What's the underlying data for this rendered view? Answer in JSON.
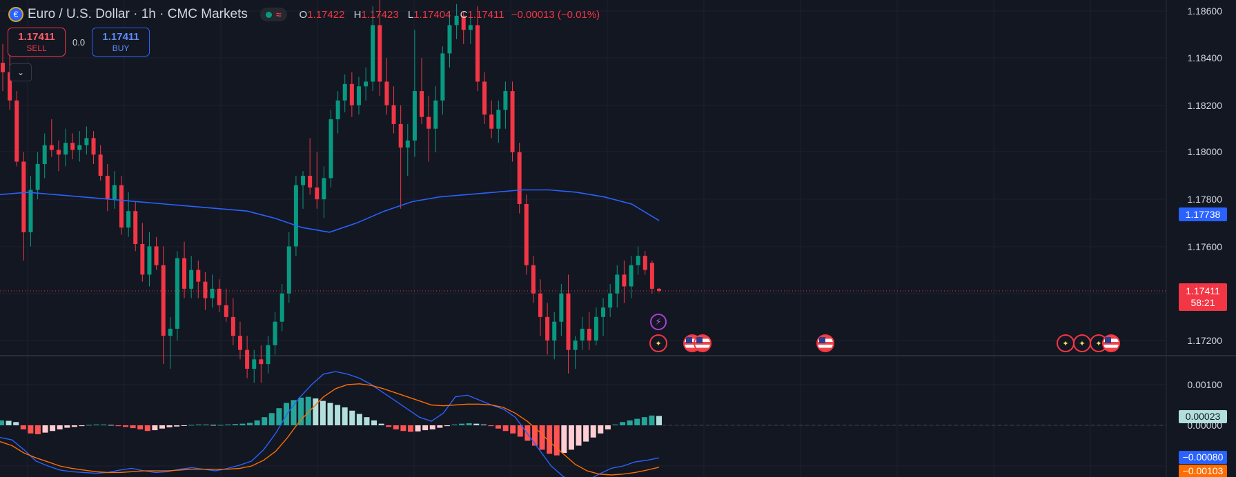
{
  "header": {
    "title": "Euro / U.S. Dollar · 1h · CMC Markets",
    "ohlc": {
      "o_label": "O",
      "o": "1.17422",
      "h_label": "H",
      "h": "1.17423",
      "l_label": "L",
      "l": "1.17404",
      "c_label": "C",
      "c": "1.17411",
      "change": "−0.00013 (−0.01%)"
    }
  },
  "trade": {
    "sell_price": "1.17411",
    "sell_label": "SELL",
    "spread": "0.0",
    "buy_price": "1.17411",
    "buy_label": "BUY"
  },
  "price_axis": {
    "labels": [
      "1.18600",
      "1.18400",
      "1.18200",
      "1.18000",
      "1.17800",
      "1.17600",
      "1.17200"
    ],
    "ma_badge": "1.17738",
    "last_badge_price": "1.17411",
    "last_badge_timer": "58:21"
  },
  "macd_axis": {
    "labels": [
      "0.00100",
      "0.00000"
    ],
    "hist_badge": "0.00023",
    "macd_badge": "−0.00080",
    "signal_badge": "−0.00103"
  },
  "colors": {
    "background": "#131722",
    "up": "#089981",
    "down": "#f23645",
    "ma": "#2962ff",
    "macd_line": "#2962ff",
    "signal_line": "#ff6d00",
    "hist_up_strong": "#26a69a",
    "hist_up_weak": "#b2dfdb",
    "hist_down_strong": "#ff5252",
    "hist_down_weak": "#ffcdd2"
  },
  "events": [
    {
      "type": "flash",
      "icon": "lightning-icon"
    },
    {
      "type": "eu",
      "icon": "eu-flag-icon"
    },
    {
      "type": "us",
      "icon": "us-flag-icon"
    },
    {
      "type": "us",
      "icon": "us-flag-icon"
    },
    {
      "type": "us",
      "icon": "us-flag-icon"
    },
    {
      "type": "eu",
      "icon": "eu-flag-icon"
    },
    {
      "type": "eu",
      "icon": "eu-flag-icon"
    },
    {
      "type": "eu",
      "icon": "eu-flag-icon"
    },
    {
      "type": "us",
      "icon": "us-flag-icon"
    }
  ],
  "chart_data": {
    "type": "candlestick",
    "price_ylim": [
      1.1716,
      1.1868
    ],
    "candles": [
      [
        1.1838,
        1.1846,
        1.1826,
        1.1834
      ],
      [
        1.1834,
        1.1842,
        1.1818,
        1.1822
      ],
      [
        1.1822,
        1.1826,
        1.1794,
        1.1796
      ],
      [
        1.1796,
        1.18,
        1.1754,
        1.1766
      ],
      [
        1.1766,
        1.179,
        1.176,
        1.1784
      ],
      [
        1.1784,
        1.18,
        1.178,
        1.1795
      ],
      [
        1.1795,
        1.1808,
        1.1789,
        1.1803
      ],
      [
        1.1803,
        1.1814,
        1.1798,
        1.1801
      ],
      [
        1.1801,
        1.1805,
        1.1792,
        1.1799
      ],
      [
        1.1799,
        1.181,
        1.1794,
        1.1804
      ],
      [
        1.1804,
        1.1808,
        1.1797,
        1.1801
      ],
      [
        1.1801,
        1.1809,
        1.1796,
        1.1803
      ],
      [
        1.1803,
        1.1811,
        1.1799,
        1.1806
      ],
      [
        1.1806,
        1.1809,
        1.1795,
        1.1799
      ],
      [
        1.1799,
        1.1803,
        1.1788,
        1.179
      ],
      [
        1.179,
        1.1795,
        1.1775,
        1.178
      ],
      [
        1.178,
        1.1792,
        1.1776,
        1.1786
      ],
      [
        1.1786,
        1.179,
        1.1765,
        1.1768
      ],
      [
        1.1768,
        1.1783,
        1.1764,
        1.1775
      ],
      [
        1.1775,
        1.1779,
        1.1758,
        1.1761
      ],
      [
        1.1761,
        1.177,
        1.1745,
        1.1748
      ],
      [
        1.1748,
        1.1766,
        1.1743,
        1.176
      ],
      [
        1.176,
        1.1764,
        1.175,
        1.1752
      ],
      [
        1.1752,
        1.176,
        1.171,
        1.1722
      ],
      [
        1.1722,
        1.173,
        1.1708,
        1.1725
      ],
      [
        1.1725,
        1.1758,
        1.172,
        1.1755
      ],
      [
        1.1755,
        1.1762,
        1.1738,
        1.1742
      ],
      [
        1.1742,
        1.1756,
        1.1738,
        1.175
      ],
      [
        1.175,
        1.1754,
        1.1738,
        1.1745
      ],
      [
        1.1745,
        1.1749,
        1.1733,
        1.1738
      ],
      [
        1.1738,
        1.1748,
        1.1734,
        1.1742
      ],
      [
        1.1742,
        1.1746,
        1.1732,
        1.1735
      ],
      [
        1.1735,
        1.1742,
        1.1728,
        1.173
      ],
      [
        1.173,
        1.1738,
        1.1718,
        1.1722
      ],
      [
        1.1722,
        1.1728,
        1.1712,
        1.1716
      ],
      [
        1.1716,
        1.1722,
        1.1704,
        1.1708
      ],
      [
        1.1708,
        1.1716,
        1.1702,
        1.1712
      ],
      [
        1.1712,
        1.1718,
        1.1702,
        1.171
      ],
      [
        1.171,
        1.1722,
        1.1706,
        1.1718
      ],
      [
        1.1718,
        1.1732,
        1.1714,
        1.1728
      ],
      [
        1.1728,
        1.1744,
        1.1724,
        1.174
      ],
      [
        1.174,
        1.1766,
        1.1736,
        1.176
      ],
      [
        1.176,
        1.179,
        1.1756,
        1.1786
      ],
      [
        1.1786,
        1.1792,
        1.1776,
        1.179
      ],
      [
        1.179,
        1.1806,
        1.1782,
        1.1785
      ],
      [
        1.1785,
        1.18,
        1.1776,
        1.178
      ],
      [
        1.178,
        1.1794,
        1.1772,
        1.1789
      ],
      [
        1.1789,
        1.1818,
        1.1785,
        1.1814
      ],
      [
        1.1814,
        1.1826,
        1.1808,
        1.1822
      ],
      [
        1.1822,
        1.1833,
        1.1817,
        1.1829
      ],
      [
        1.1829,
        1.1834,
        1.1815,
        1.182
      ],
      [
        1.182,
        1.1832,
        1.1816,
        1.1828
      ],
      [
        1.1828,
        1.1836,
        1.1822,
        1.183
      ],
      [
        1.183,
        1.1862,
        1.1826,
        1.1854
      ],
      [
        1.1854,
        1.1866,
        1.1824,
        1.183
      ],
      [
        1.183,
        1.184,
        1.1816,
        1.182
      ],
      [
        1.182,
        1.1828,
        1.1808,
        1.1812
      ],
      [
        1.1812,
        1.182,
        1.1776,
        1.1802
      ],
      [
        1.1802,
        1.1812,
        1.179,
        1.1805
      ],
      [
        1.1805,
        1.1852,
        1.1798,
        1.1826
      ],
      [
        1.1826,
        1.184,
        1.1812,
        1.1815
      ],
      [
        1.1815,
        1.1824,
        1.1796,
        1.181
      ],
      [
        1.181,
        1.1828,
        1.18,
        1.1822
      ],
      [
        1.1822,
        1.1845,
        1.1816,
        1.1842
      ],
      [
        1.1842,
        1.186,
        1.1836,
        1.1854
      ],
      [
        1.1854,
        1.1863,
        1.1848,
        1.1858
      ],
      [
        1.1858,
        1.186,
        1.1846,
        1.1852
      ],
      [
        1.1852,
        1.186,
        1.1846,
        1.1854
      ],
      [
        1.1854,
        1.1862,
        1.1826,
        1.183
      ],
      [
        1.183,
        1.1834,
        1.1812,
        1.1816
      ],
      [
        1.1816,
        1.1822,
        1.1806,
        1.181
      ],
      [
        1.181,
        1.1822,
        1.1804,
        1.1818
      ],
      [
        1.1818,
        1.183,
        1.181,
        1.1826
      ],
      [
        1.1826,
        1.183,
        1.1796,
        1.18
      ],
      [
        1.18,
        1.1804,
        1.1774,
        1.1778
      ],
      [
        1.1778,
        1.1782,
        1.1748,
        1.1752
      ],
      [
        1.1752,
        1.1756,
        1.1736,
        1.174
      ],
      [
        1.174,
        1.1746,
        1.1722,
        1.173
      ],
      [
        1.173,
        1.1736,
        1.1714,
        1.172
      ],
      [
        1.172,
        1.1732,
        1.1712,
        1.1728
      ],
      [
        1.1728,
        1.1744,
        1.1722,
        1.174
      ],
      [
        1.174,
        1.1748,
        1.1706,
        1.1716
      ],
      [
        1.1716,
        1.1722,
        1.1708,
        1.172
      ],
      [
        1.172,
        1.173,
        1.1716,
        1.1725
      ],
      [
        1.1725,
        1.1732,
        1.1716,
        1.172
      ],
      [
        1.172,
        1.1734,
        1.1718,
        1.173
      ],
      [
        1.173,
        1.1738,
        1.1722,
        1.1734
      ],
      [
        1.1734,
        1.1744,
        1.173,
        1.174
      ],
      [
        1.174,
        1.1752,
        1.1734,
        1.1748
      ],
      [
        1.1748,
        1.1754,
        1.1736,
        1.1743
      ],
      [
        1.1743,
        1.1756,
        1.1738,
        1.1752
      ],
      [
        1.1752,
        1.176,
        1.1748,
        1.1756
      ],
      [
        1.1756,
        1.1758,
        1.1748,
        1.175
      ],
      [
        1.1753,
        1.1754,
        1.174,
        1.1742
      ],
      [
        1.1742,
        1.17423,
        1.17404,
        1.17411
      ]
    ],
    "moving_average": {
      "name": "",
      "values": [
        1.1782,
        1.1783,
        1.1782,
        1.1781,
        1.178,
        1.1779,
        1.1778,
        1.1777,
        1.1776,
        1.1775,
        1.1772,
        1.1768,
        1.1766,
        1.177,
        1.1775,
        1.1779,
        1.1781,
        1.1782,
        1.1783,
        1.1784,
        1.1784,
        1.1783,
        1.1781,
        1.1778,
        1.1771
      ]
    },
    "macd_ylim": [
      -0.0012,
      0.0015
    ],
    "histogram": [
      0.00012,
      0.00011,
      8e-05,
      -0.0001,
      -0.0002,
      -0.00022,
      -0.00018,
      -0.00014,
      -0.0001,
      -6e-05,
      -4e-05,
      -2e-05,
      1e-05,
      2e-05,
      2e-05,
      1e-05,
      -2e-05,
      -4e-05,
      -7e-05,
      -0.0001,
      -0.00014,
      -0.00012,
      -8e-05,
      -5e-05,
      -3e-05,
      -1e-05,
      1e-05,
      2e-05,
      2e-05,
      1e-05,
      1e-05,
      2e-05,
      3e-05,
      4e-05,
      6e-05,
      0.00012,
      0.0002,
      0.0003,
      0.00042,
      0.00055,
      0.00062,
      0.00068,
      0.0007,
      0.00066,
      0.0006,
      0.00055,
      0.0005,
      0.00044,
      0.00036,
      0.00028,
      0.0002,
      0.00012,
      4e-05,
      -4e-05,
      -0.0001,
      -0.00014,
      -0.00016,
      -0.00015,
      -0.00012,
      -0.0001,
      -6e-05,
      -2e-05,
      2e-05,
      4e-05,
      5e-05,
      4e-05,
      2e-05,
      -2e-05,
      -8e-05,
      -0.00014,
      -0.0002,
      -0.00028,
      -0.00038,
      -0.0005,
      -0.0006,
      -0.0007,
      -0.00074,
      -0.00068,
      -0.0006,
      -0.0005,
      -0.0004,
      -0.0003,
      -0.0002,
      -0.0001,
      2e-05,
      8e-05,
      0.00012,
      0.00016,
      0.0002,
      0.00024,
      0.00023
    ],
    "macd_line": [
      -0.0003,
      -0.00036,
      -0.0006,
      -0.00088,
      -0.001,
      -0.0011,
      -0.00114,
      -0.00116,
      -0.00118,
      -0.00116,
      -0.0011,
      -0.00106,
      -0.00112,
      -0.00116,
      -0.00114,
      -0.00108,
      -0.00104,
      -0.00108,
      -0.00112,
      -0.00106,
      -0.00098,
      -0.00088,
      -0.0006,
      -0.0002,
      0.0003,
      0.00068,
      0.001,
      0.00126,
      0.00132,
      0.00126,
      0.00116,
      0.001,
      0.0008,
      0.0006,
      0.0004,
      0.0002,
      0.0001,
      0.0003,
      0.0007,
      0.00074,
      0.00062,
      0.0005,
      0.0004,
      0.0002,
      -0.0002,
      -0.0006,
      -0.001,
      -0.00126,
      -0.0014,
      -0.00136,
      -0.0012,
      -0.00106,
      -0.001,
      -0.0009,
      -0.00086,
      -0.0008
    ],
    "signal_line": [
      -0.0004,
      -0.0005,
      -0.00068,
      -0.0008,
      -0.0009,
      -0.001,
      -0.00106,
      -0.0011,
      -0.00114,
      -0.00116,
      -0.00116,
      -0.00114,
      -0.00112,
      -0.00112,
      -0.00112,
      -0.0011,
      -0.00108,
      -0.00108,
      -0.00108,
      -0.00108,
      -0.00106,
      -0.001,
      -0.00086,
      -0.00064,
      -0.0003,
      0.0001,
      0.0004,
      0.0007,
      0.0009,
      0.001,
      0.00102,
      0.00098,
      0.0009,
      0.0008,
      0.0007,
      0.0006,
      0.0005,
      0.00048,
      0.0005,
      0.00052,
      0.00052,
      0.0005,
      0.00044,
      0.0003,
      0.0001,
      -0.00016,
      -0.00044,
      -0.0007,
      -0.00096,
      -0.00112,
      -0.0012,
      -0.00122,
      -0.0012,
      -0.00116,
      -0.0011,
      -0.00103
    ]
  }
}
